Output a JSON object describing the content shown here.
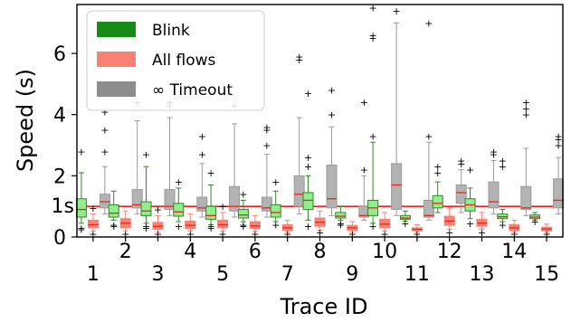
{
  "chart_data": {
    "type": "boxplot",
    "xlabel": "Trace ID",
    "ylabel": "Speed (s)",
    "ylim": [
      0,
      7.6
    ],
    "yticks": [
      "0",
      "2",
      "4",
      "6"
    ],
    "reference_line": {
      "value": 1,
      "label": "1s",
      "color": "#e8251f"
    },
    "categories": [
      "1",
      "2",
      "3",
      "4",
      "5",
      "6",
      "7",
      "8",
      "9",
      "10",
      "11",
      "12",
      "13",
      "14",
      "15"
    ],
    "legend": {
      "placement": "top-left"
    },
    "series": [
      {
        "name": "Blink",
        "color": "#90ee90",
        "edge": "#2e8b22",
        "legend_color": "#178a17",
        "stats": [
          {
            "whislo": 0.45,
            "q1": 0.65,
            "med": 0.9,
            "q3": 1.25,
            "whishi": 2.1,
            "fliers": [
              0.25,
              0.3,
              2.8
            ]
          },
          {
            "whislo": 0.55,
            "q1": 0.65,
            "med": 0.78,
            "q3": 1.05,
            "whishi": 1.5,
            "fliers": [
              0.35,
              0.4
            ]
          },
          {
            "whislo": 0.45,
            "q1": 0.7,
            "med": 0.85,
            "q3": 1.15,
            "whishi": 2.3,
            "fliers": [
              0.3,
              0.35,
              2.7
            ]
          },
          {
            "whislo": 0.5,
            "q1": 0.68,
            "med": 0.82,
            "q3": 1.1,
            "whishi": 1.6,
            "fliers": [
              0.35,
              1.8
            ]
          },
          {
            "whislo": 0.4,
            "q1": 0.58,
            "med": 0.7,
            "q3": 1.0,
            "whishi": 1.7,
            "fliers": [
              0.3,
              0.35,
              2.1
            ]
          },
          {
            "whislo": 0.5,
            "q1": 0.62,
            "med": 0.72,
            "q3": 0.9,
            "whishi": 1.2,
            "fliers": [
              0.35,
              0.4,
              1.4
            ]
          },
          {
            "whislo": 0.5,
            "q1": 0.65,
            "med": 0.8,
            "q3": 1.05,
            "whishi": 1.5,
            "fliers": [
              0.4,
              1.8
            ]
          },
          {
            "whislo": 0.55,
            "q1": 0.9,
            "med": 1.2,
            "q3": 1.45,
            "whishi": 2.0,
            "fliers": [
              0.35,
              2.3,
              2.6,
              4.7
            ]
          },
          {
            "whislo": 0.55,
            "q1": 0.62,
            "med": 0.68,
            "q3": 0.8,
            "whishi": 1.0,
            "fliers": [
              0.4,
              0.45
            ]
          },
          {
            "whislo": 0.45,
            "q1": 0.7,
            "med": 0.95,
            "q3": 1.2,
            "whishi": 3.1,
            "fliers": [
              0.35,
              3.3,
              6.5,
              6.6,
              7.5
            ]
          },
          {
            "whislo": 0.52,
            "q1": 0.58,
            "med": 0.62,
            "q3": 0.7,
            "whishi": 0.85,
            "fliers": [
              0.45
            ]
          },
          {
            "whislo": 0.8,
            "q1": 0.95,
            "med": 1.1,
            "q3": 1.35,
            "whishi": 1.8,
            "fliers": [
              2.1,
              2.3
            ]
          },
          {
            "whislo": 0.6,
            "q1": 0.85,
            "med": 1.05,
            "q3": 1.25,
            "whishi": 1.6,
            "fliers": [
              0.45,
              2.2
            ]
          },
          {
            "whislo": 0.5,
            "q1": 0.6,
            "med": 0.66,
            "q3": 0.75,
            "whishi": 0.9,
            "fliers": [
              0.4,
              2.3,
              2.5
            ]
          },
          {
            "whislo": 0.55,
            "q1": 0.6,
            "med": 0.65,
            "q3": 0.72,
            "whishi": 0.8,
            "fliers": [
              0.5
            ]
          }
        ]
      },
      {
        "name": "All flows",
        "color": "#fa8072",
        "edge": "#fa8072",
        "legend_color": "#fa8072",
        "stats": [
          {
            "whislo": 0.2,
            "q1": 0.3,
            "med": 0.4,
            "q3": 0.55,
            "whishi": 0.75,
            "fliers": [
              0.1,
              0.95
            ]
          },
          {
            "whislo": 0.2,
            "q1": 0.3,
            "med": 0.45,
            "q3": 0.6,
            "whishi": 0.85,
            "fliers": [
              0.1
            ]
          },
          {
            "whislo": 0.15,
            "q1": 0.25,
            "med": 0.35,
            "q3": 0.48,
            "whishi": 0.7,
            "fliers": [
              0.1,
              0.9
            ]
          },
          {
            "whislo": 0.2,
            "q1": 0.28,
            "med": 0.38,
            "q3": 0.52,
            "whishi": 0.75,
            "fliers": [
              0.1
            ]
          },
          {
            "whislo": 0.2,
            "q1": 0.3,
            "med": 0.4,
            "q3": 0.55,
            "whishi": 0.8,
            "fliers": [
              0.1,
              1.0
            ]
          },
          {
            "whislo": 0.18,
            "q1": 0.28,
            "med": 0.36,
            "q3": 0.5,
            "whishi": 0.7,
            "fliers": [
              0.1
            ]
          },
          {
            "whislo": 0.15,
            "q1": 0.22,
            "med": 0.3,
            "q3": 0.4,
            "whishi": 0.55,
            "fliers": [
              0.1
            ]
          },
          {
            "whislo": 0.22,
            "q1": 0.35,
            "med": 0.48,
            "q3": 0.62,
            "whishi": 0.85,
            "fliers": [
              0.15
            ]
          },
          {
            "whislo": 0.15,
            "q1": 0.22,
            "med": 0.3,
            "q3": 0.38,
            "whishi": 0.5,
            "fliers": [
              0.1
            ]
          },
          {
            "whislo": 0.2,
            "q1": 0.3,
            "med": 0.42,
            "q3": 0.58,
            "whishi": 0.8,
            "fliers": [
              0.1
            ]
          },
          {
            "whislo": 0.15,
            "q1": 0.2,
            "med": 0.25,
            "q3": 0.3,
            "whishi": 0.4,
            "fliers": [
              0.1
            ]
          },
          {
            "whislo": 0.25,
            "q1": 0.38,
            "med": 0.52,
            "q3": 0.68,
            "whishi": 0.95,
            "fliers": [
              0.15
            ]
          },
          {
            "whislo": 0.25,
            "q1": 0.35,
            "med": 0.45,
            "q3": 0.58,
            "whishi": 0.8,
            "fliers": [
              0.15
            ]
          },
          {
            "whislo": 0.15,
            "q1": 0.22,
            "med": 0.3,
            "q3": 0.4,
            "whishi": 0.55,
            "fliers": [
              0.1
            ]
          },
          {
            "whislo": 0.15,
            "q1": 0.2,
            "med": 0.26,
            "q3": 0.32,
            "whishi": 0.42,
            "fliers": [
              0.1
            ]
          }
        ]
      },
      {
        "name": "∞ Timeout",
        "color": "#b3b3b3",
        "edge": "#9a9a9a",
        "legend_color": "#8c8c8c",
        "stats": [
          {
            "whislo": 0.75,
            "q1": 0.95,
            "med": 1.15,
            "q3": 1.4,
            "whishi": 2.3,
            "fliers": [
              2.8,
              3.5,
              4.1
            ]
          },
          {
            "whislo": 0.75,
            "q1": 0.95,
            "med": 1.05,
            "q3": 1.55,
            "whishi": 3.8,
            "fliers": [
              4.4
            ]
          },
          {
            "whislo": 0.7,
            "q1": 0.9,
            "med": 1.0,
            "q3": 1.55,
            "whishi": 3.9,
            "fliers": [
              4.3,
              4.4
            ]
          },
          {
            "whislo": 0.65,
            "q1": 0.85,
            "med": 0.95,
            "q3": 1.3,
            "whishi": 2.4,
            "fliers": [
              2.7,
              3.3
            ]
          },
          {
            "whislo": 0.65,
            "q1": 0.85,
            "med": 1.0,
            "q3": 1.65,
            "whishi": 3.7,
            "fliers": [
              4.3
            ]
          },
          {
            "whislo": 0.65,
            "q1": 0.85,
            "med": 0.95,
            "q3": 1.3,
            "whishi": 2.7,
            "fliers": [
              3.0,
              3.5,
              3.6
            ]
          },
          {
            "whislo": 0.75,
            "q1": 1.0,
            "med": 1.4,
            "q3": 2.0,
            "whishi": 3.9,
            "fliers": [
              5.8,
              5.9
            ]
          },
          {
            "whislo": 0.7,
            "q1": 0.95,
            "med": 1.25,
            "q3": 2.35,
            "whishi": 3.6,
            "fliers": [
              4.0,
              4.8
            ]
          },
          {
            "whislo": 0.55,
            "q1": 0.65,
            "med": 0.7,
            "q3": 1.0,
            "whishi": 2.0,
            "fliers": [
              2.2,
              4.4
            ]
          },
          {
            "whislo": 0.7,
            "q1": 0.9,
            "med": 1.7,
            "q3": 2.4,
            "whishi": 7.0,
            "fliers": [
              7.4
            ]
          },
          {
            "whislo": 0.55,
            "q1": 0.65,
            "med": 0.7,
            "q3": 1.2,
            "whishi": 3.1,
            "fliers": [
              3.3,
              7.0
            ]
          },
          {
            "whislo": 0.8,
            "q1": 1.1,
            "med": 1.45,
            "q3": 1.7,
            "whishi": 2.2,
            "fliers": [
              2.4,
              2.5
            ]
          },
          {
            "whislo": 0.75,
            "q1": 0.95,
            "med": 1.15,
            "q3": 1.8,
            "whishi": 2.5,
            "fliers": [
              2.7,
              2.8
            ]
          },
          {
            "whislo": 0.7,
            "q1": 0.9,
            "med": 0.95,
            "q3": 1.65,
            "whishi": 2.9,
            "fliers": [
              4.0,
              4.2,
              4.4
            ]
          },
          {
            "whislo": 0.75,
            "q1": 0.95,
            "med": 1.2,
            "q3": 1.9,
            "whishi": 2.6,
            "fliers": [
              3.0,
              3.2,
              3.3
            ]
          }
        ]
      }
    ]
  }
}
